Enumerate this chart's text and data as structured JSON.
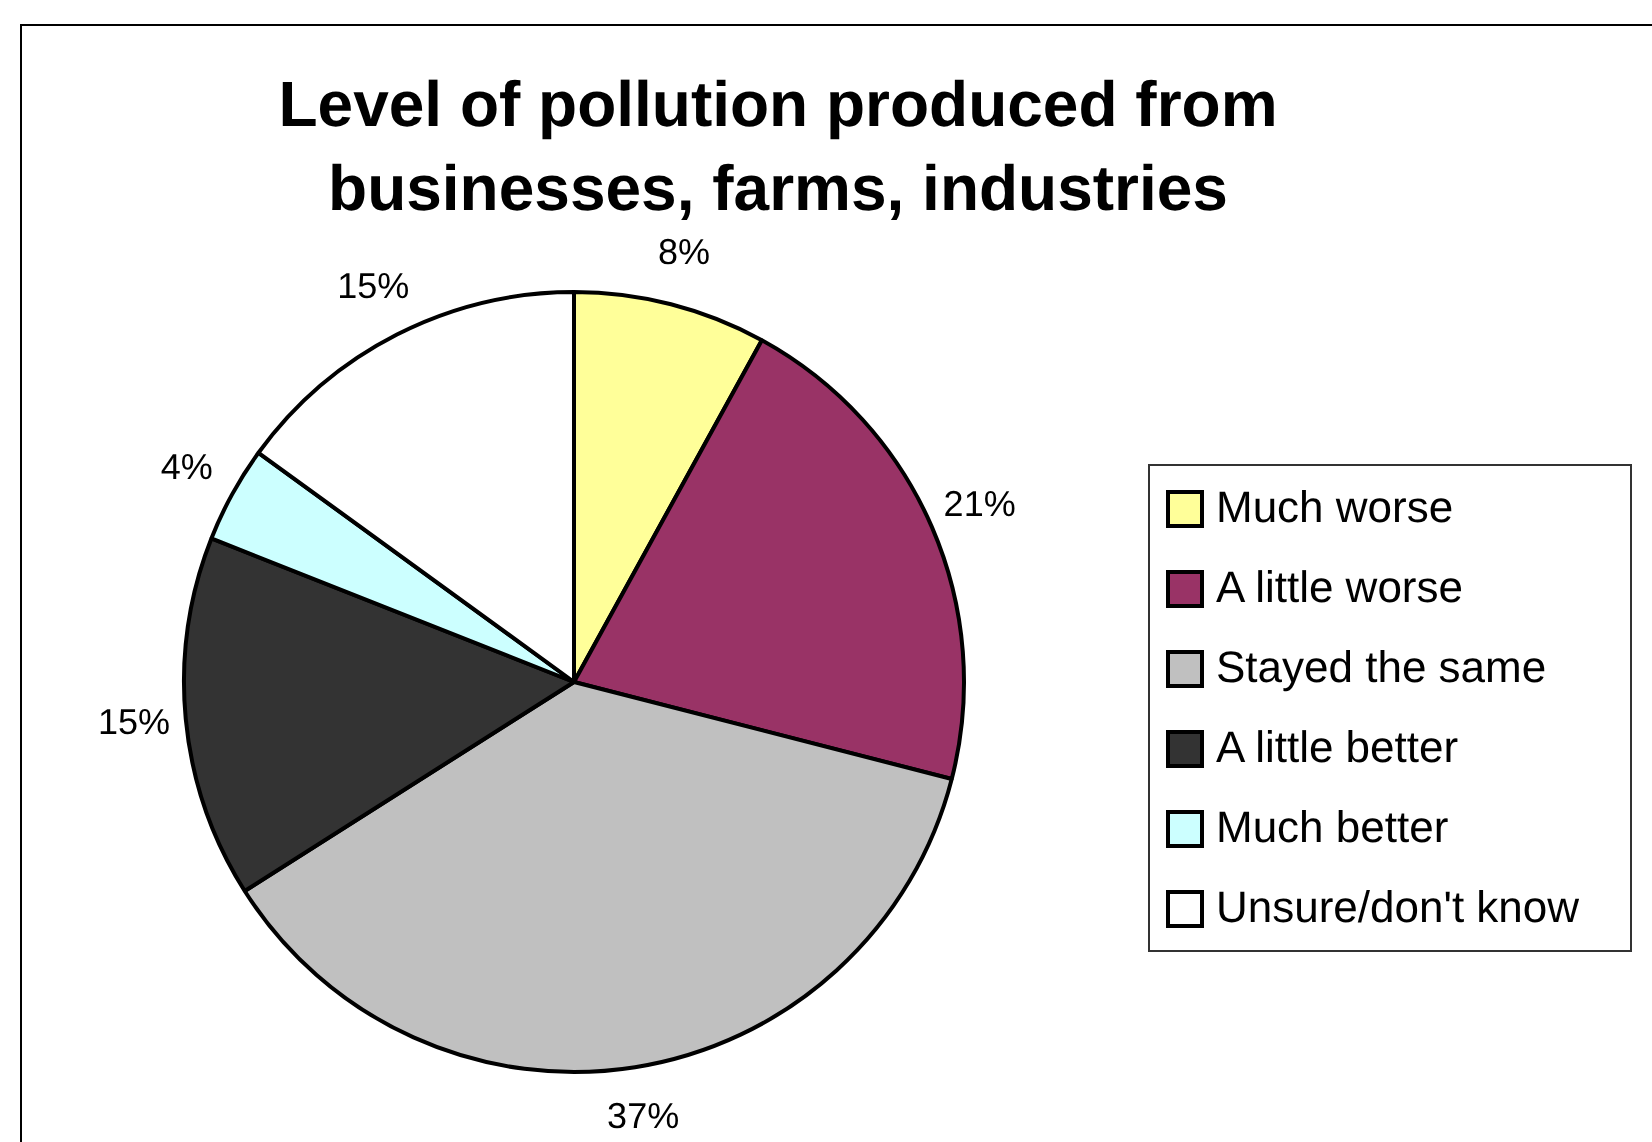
{
  "chart_data": {
    "type": "pie",
    "title": "Level of pollution produced from businesses, farms, industries",
    "categories": [
      "Much worse",
      "A little worse",
      "Stayed the same",
      "A little better",
      "Much better",
      "Unsure/don't know"
    ],
    "values": [
      8,
      21,
      37,
      15,
      4,
      15
    ],
    "colors": [
      "#ffff99",
      "#993366",
      "#c0c0c0",
      "#333333",
      "#ccffff",
      "#ffffff"
    ],
    "value_labels": [
      "8%",
      "21%",
      "37%",
      "15%",
      "4%",
      "15%"
    ],
    "legend": "right"
  }
}
